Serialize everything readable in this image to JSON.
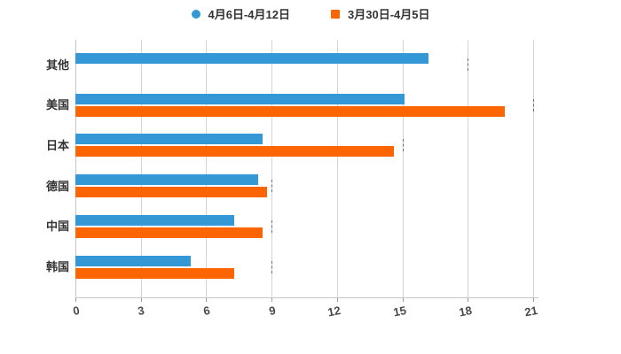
{
  "legend": {
    "items": [
      {
        "label": "4月6日-4月12日",
        "color": "#3398d5",
        "shape": "circle"
      },
      {
        "label": "3月30日-4月5日",
        "color": "#fd6502",
        "shape": "square"
      }
    ]
  },
  "chart_data": {
    "type": "bar",
    "orientation": "horizontal",
    "title": "",
    "xlabel": "",
    "ylabel": "",
    "categories": [
      "其他",
      "美国",
      "日本",
      "德国",
      "中国",
      "韩国"
    ],
    "series": [
      {
        "name": "4月6日-4月12日",
        "color": "#3398d5",
        "values": [
          16.2,
          15.1,
          8.6,
          8.4,
          7.3,
          5.3
        ]
      },
      {
        "name": "3月30日-4月5日",
        "color": "#fd6502",
        "values": [
          null,
          19.7,
          14.6,
          8.8,
          8.6,
          7.3
        ]
      }
    ],
    "x_ticks": [
      "0",
      "3",
      "6",
      "9",
      "12",
      "15",
      "18",
      "21"
    ],
    "xlim": [
      0,
      21
    ],
    "grid": "vertical-only",
    "legend_position": "top-center",
    "background": "#ffffff"
  },
  "colors": {
    "series_blue": "#3398d5",
    "series_orange": "#fd6502",
    "gridline": "#d4d4d4",
    "axis_line": "#c6c6c6",
    "tick_text": "#4a4a4a",
    "label_text": "#333333"
  }
}
